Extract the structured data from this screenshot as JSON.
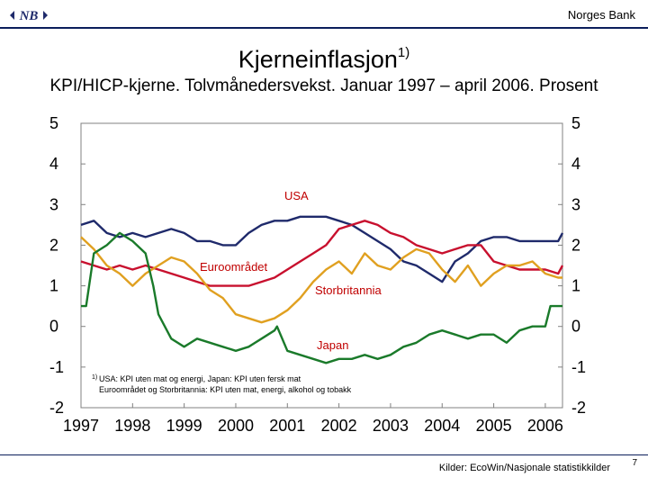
{
  "header": {
    "bank_name": "Norges Bank",
    "logo_text": "NB"
  },
  "title": {
    "main": "Kjerneinflasjon",
    "sup": "1)",
    "subtitle": "KPI/HICP-kjerne. Tolvmånedersvekst. Januar 1997 – april 2006. Prosent"
  },
  "footer": {
    "source": "Kilder: EcoWin/Nasjonale statistikkilder",
    "page": "7"
  },
  "chart_data": {
    "type": "line",
    "title": "Kjerneinflasjon 1)",
    "subtitle": "KPI/HICP-kjerne. Tolvmånedersvekst. Januar 1997 – april 2006. Prosent",
    "x_start": 1997.0,
    "x_end": 2006.333,
    "x_ticks": [
      "1997",
      "1998",
      "1999",
      "2000",
      "2001",
      "2002",
      "2003",
      "2004",
      "2005",
      "2006"
    ],
    "y_ticks": [
      "5",
      "4",
      "3",
      "2",
      "1",
      "0",
      "-1",
      "-2"
    ],
    "ylim": [
      -2,
      5
    ],
    "grid": false,
    "series": [
      {
        "name": "USA",
        "color": "#1f2a6b",
        "points": [
          [
            1997.0,
            2.5
          ],
          [
            1997.25,
            2.6
          ],
          [
            1997.5,
            2.3
          ],
          [
            1997.75,
            2.2
          ],
          [
            1998.0,
            2.3
          ],
          [
            1998.25,
            2.2
          ],
          [
            1998.5,
            2.3
          ],
          [
            1998.75,
            2.4
          ],
          [
            1999.0,
            2.3
          ],
          [
            1999.25,
            2.1
          ],
          [
            1999.5,
            2.1
          ],
          [
            1999.75,
            2.0
          ],
          [
            2000.0,
            2.0
          ],
          [
            2000.25,
            2.3
          ],
          [
            2000.5,
            2.5
          ],
          [
            2000.75,
            2.6
          ],
          [
            2001.0,
            2.6
          ],
          [
            2001.25,
            2.7
          ],
          [
            2001.5,
            2.7
          ],
          [
            2001.75,
            2.7
          ],
          [
            2002.0,
            2.6
          ],
          [
            2002.25,
            2.5
          ],
          [
            2002.5,
            2.3
          ],
          [
            2002.75,
            2.1
          ],
          [
            2003.0,
            1.9
          ],
          [
            2003.25,
            1.6
          ],
          [
            2003.5,
            1.5
          ],
          [
            2003.75,
            1.3
          ],
          [
            2004.0,
            1.1
          ],
          [
            2004.25,
            1.6
          ],
          [
            2004.5,
            1.8
          ],
          [
            2004.75,
            2.1
          ],
          [
            2005.0,
            2.2
          ],
          [
            2005.25,
            2.2
          ],
          [
            2005.5,
            2.1
          ],
          [
            2005.75,
            2.1
          ],
          [
            2006.0,
            2.1
          ],
          [
            2006.25,
            2.1
          ],
          [
            2006.333,
            2.3
          ]
        ]
      },
      {
        "name": "Euroområdet",
        "color": "#c8102e",
        "points": [
          [
            1997.0,
            1.6
          ],
          [
            1997.25,
            1.5
          ],
          [
            1997.5,
            1.4
          ],
          [
            1997.75,
            1.5
          ],
          [
            1998.0,
            1.4
          ],
          [
            1998.25,
            1.5
          ],
          [
            1998.5,
            1.4
          ],
          [
            1998.75,
            1.3
          ],
          [
            1999.0,
            1.2
          ],
          [
            1999.25,
            1.1
          ],
          [
            1999.5,
            1.0
          ],
          [
            1999.75,
            1.0
          ],
          [
            2000.0,
            1.0
          ],
          [
            2000.25,
            1.0
          ],
          [
            2000.5,
            1.1
          ],
          [
            2000.75,
            1.2
          ],
          [
            2001.0,
            1.4
          ],
          [
            2001.25,
            1.6
          ],
          [
            2001.5,
            1.8
          ],
          [
            2001.75,
            2.0
          ],
          [
            2002.0,
            2.4
          ],
          [
            2002.25,
            2.5
          ],
          [
            2002.5,
            2.6
          ],
          [
            2002.75,
            2.5
          ],
          [
            2003.0,
            2.3
          ],
          [
            2003.25,
            2.2
          ],
          [
            2003.5,
            2.0
          ],
          [
            2003.75,
            1.9
          ],
          [
            2004.0,
            1.8
          ],
          [
            2004.25,
            1.9
          ],
          [
            2004.5,
            2.0
          ],
          [
            2004.75,
            2.0
          ],
          [
            2005.0,
            1.6
          ],
          [
            2005.25,
            1.5
          ],
          [
            2005.5,
            1.4
          ],
          [
            2005.75,
            1.4
          ],
          [
            2006.0,
            1.4
          ],
          [
            2006.25,
            1.3
          ],
          [
            2006.333,
            1.5
          ]
        ]
      },
      {
        "name": "Storbritannia",
        "color": "#e0a020",
        "points": [
          [
            1997.0,
            2.2
          ],
          [
            1997.25,
            1.9
          ],
          [
            1997.5,
            1.5
          ],
          [
            1997.75,
            1.3
          ],
          [
            1998.0,
            1.0
          ],
          [
            1998.25,
            1.3
          ],
          [
            1998.5,
            1.5
          ],
          [
            1998.75,
            1.7
          ],
          [
            1999.0,
            1.6
          ],
          [
            1999.25,
            1.3
          ],
          [
            1999.5,
            0.9
          ],
          [
            1999.75,
            0.7
          ],
          [
            2000.0,
            0.3
          ],
          [
            2000.25,
            0.2
          ],
          [
            2000.5,
            0.1
          ],
          [
            2000.75,
            0.2
          ],
          [
            2001.0,
            0.4
          ],
          [
            2001.25,
            0.7
          ],
          [
            2001.5,
            1.1
          ],
          [
            2001.75,
            1.4
          ],
          [
            2002.0,
            1.6
          ],
          [
            2002.25,
            1.3
          ],
          [
            2002.5,
            1.8
          ],
          [
            2002.75,
            1.5
          ],
          [
            2003.0,
            1.4
          ],
          [
            2003.25,
            1.7
          ],
          [
            2003.5,
            1.9
          ],
          [
            2003.75,
            1.8
          ],
          [
            2004.0,
            1.4
          ],
          [
            2004.25,
            1.1
          ],
          [
            2004.5,
            1.5
          ],
          [
            2004.75,
            1.0
          ],
          [
            2005.0,
            1.3
          ],
          [
            2005.25,
            1.5
          ],
          [
            2005.5,
            1.5
          ],
          [
            2005.75,
            1.6
          ],
          [
            2006.0,
            1.3
          ],
          [
            2006.25,
            1.2
          ],
          [
            2006.333,
            1.2
          ]
        ]
      },
      {
        "name": "Japan",
        "color": "#1a7a2a",
        "points": [
          [
            1997.0,
            0.5
          ],
          [
            1997.1,
            0.5
          ],
          [
            1997.25,
            1.8
          ],
          [
            1997.5,
            2.0
          ],
          [
            1997.75,
            2.3
          ],
          [
            1998.0,
            2.1
          ],
          [
            1998.25,
            1.8
          ],
          [
            1998.4,
            1.0
          ],
          [
            1998.5,
            0.3
          ],
          [
            1998.75,
            -0.3
          ],
          [
            1999.0,
            -0.5
          ],
          [
            1999.25,
            -0.3
          ],
          [
            1999.5,
            -0.4
          ],
          [
            1999.75,
            -0.5
          ],
          [
            2000.0,
            -0.6
          ],
          [
            2000.25,
            -0.5
          ],
          [
            2000.5,
            -0.3
          ],
          [
            2000.75,
            -0.1
          ],
          [
            2000.8,
            0.0
          ],
          [
            2001.0,
            -0.6
          ],
          [
            2001.25,
            -0.7
          ],
          [
            2001.5,
            -0.8
          ],
          [
            2001.75,
            -0.9
          ],
          [
            2002.0,
            -0.8
          ],
          [
            2002.25,
            -0.8
          ],
          [
            2002.5,
            -0.7
          ],
          [
            2002.75,
            -0.8
          ],
          [
            2003.0,
            -0.7
          ],
          [
            2003.25,
            -0.5
          ],
          [
            2003.5,
            -0.4
          ],
          [
            2003.75,
            -0.2
          ],
          [
            2004.0,
            -0.1
          ],
          [
            2004.25,
            -0.2
          ],
          [
            2004.5,
            -0.3
          ],
          [
            2004.75,
            -0.2
          ],
          [
            2005.0,
            -0.2
          ],
          [
            2005.25,
            -0.4
          ],
          [
            2005.5,
            -0.1
          ],
          [
            2005.75,
            0.0
          ],
          [
            2006.0,
            0.0
          ],
          [
            2006.1,
            0.5
          ],
          [
            2006.333,
            0.5
          ]
        ]
      }
    ],
    "annotations": {
      "usa": "USA",
      "euro": "Euroområdet",
      "uk": "Storbritannia",
      "japan": "Japan"
    },
    "footnote": {
      "marker": "1)",
      "line1": "USA: KPI uten mat og energi, Japan: KPI uten fersk mat",
      "line2": "Euroområdet og Storbritannia: KPI uten mat, energi, alkohol og tobakk"
    }
  }
}
